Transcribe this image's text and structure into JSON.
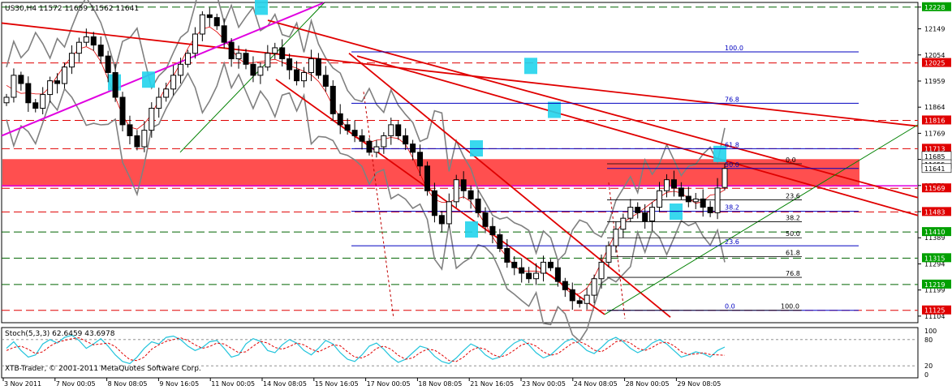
{
  "header": {
    "symbol_line": "US30,H4  11572 11659 11562 11641",
    "stoch_label": "Stoch(5,3,3) 62.6459 43.6978",
    "copyright": "XTB-Trader, © 2001-2011 MetaQuotes Software Corp."
  },
  "chart_data": [
    {
      "type": "candlestick",
      "symbol": "US30",
      "timeframe": "H4",
      "last_ohlc": {
        "open": 11572,
        "high": 11659,
        "low": 11562,
        "close": 11641
      },
      "ylim": [
        11080,
        12245
      ],
      "price_ticks": [
        12228,
        12149,
        12054,
        11959,
        11864,
        11769,
        11674,
        11579,
        11484,
        11389,
        11294,
        11199,
        11104
      ],
      "x_tick_labels": [
        "3 Nov 2011",
        "7 Nov 00:05",
        "8 Nov 08:05",
        "9 Nov 16:05",
        "11 Nov 00:05",
        "14 Nov 08:05",
        "15 Nov 16:05",
        "17 Nov 00:05",
        "18 Nov 08:05",
        "21 Nov 16:05",
        "23 Nov 00:05",
        "24 Nov 08:05",
        "28 Nov 00:05",
        "29 Nov 08:05"
      ],
      "close_series": [
        11900,
        11980,
        11950,
        11880,
        11860,
        11910,
        11960,
        11950,
        12010,
        12060,
        12100,
        12120,
        12090,
        12050,
        11990,
        11900,
        11800,
        11760,
        11720,
        11780,
        11860,
        11900,
        11930,
        11980,
        12020,
        12060,
        12130,
        12200,
        12190,
        12160,
        12100,
        12040,
        12060,
        12020,
        11980,
        12010,
        12060,
        12080,
        12040,
        12000,
        11960,
        11990,
        12040,
        11980,
        11940,
        11840,
        11800,
        11780,
        11760,
        11740,
        11700,
        11720,
        11760,
        11800,
        11760,
        11730,
        11700,
        11650,
        11560,
        11470,
        11440,
        11520,
        11600,
        11560,
        11530,
        11480,
        11430,
        11400,
        11350,
        11300,
        11280,
        11260,
        11240,
        11260,
        11300,
        11280,
        11230,
        11200,
        11160,
        11150,
        11180,
        11240,
        11300,
        11360,
        11420,
        11460,
        11500,
        11480,
        11450,
        11500,
        11560,
        11600,
        11570,
        11540,
        11520,
        11530,
        11500,
        11480,
        11570,
        11641
      ],
      "price_labels": [
        {
          "label": "12228",
          "value": 12228,
          "color": "#00a000"
        },
        {
          "label": "12025",
          "value": 12025,
          "color": "#e00000"
        },
        {
          "label": "11816",
          "value": 11816,
          "color": "#e00000"
        },
        {
          "label": "11713",
          "value": 11713,
          "color": "#e00000"
        },
        {
          "label": "11685",
          "value": 11685,
          "color": "#ffffff"
        },
        {
          "label": "11655",
          "value": 11655,
          "color": "#ffffff"
        },
        {
          "label": "11641",
          "value": 11641,
          "color": "#ffffff"
        },
        {
          "label": "11569",
          "value": 11569,
          "color": "#e00000"
        },
        {
          "label": "11483",
          "value": 11483,
          "color": "#e00000"
        },
        {
          "label": "11410",
          "value": 11410,
          "color": "#00a000"
        },
        {
          "label": "11315",
          "value": 11315,
          "color": "#00a000"
        },
        {
          "label": "11219",
          "value": 11219,
          "color": "#00a000"
        },
        {
          "label": "11125",
          "value": 11125,
          "color": "#e00000"
        }
      ],
      "fib_upper": [
        {
          "label": "100.0",
          "value": 12065
        },
        {
          "label": "76.8",
          "value": 11878
        },
        {
          "label": "61.8",
          "value": 11713
        },
        {
          "label": "50.0",
          "value": 11641
        },
        {
          "label": "38.2",
          "value": 11485
        },
        {
          "label": "23.6",
          "value": 11360
        },
        {
          "label": "0.0",
          "value": 11125
        }
      ],
      "fib_lower": [
        {
          "label": "0.0",
          "value": 11658
        },
        {
          "label": "23.6",
          "value": 11527
        },
        {
          "label": "38.2",
          "value": 11447
        },
        {
          "label": "50.0",
          "value": 11389
        },
        {
          "label": "61.8",
          "value": 11320
        },
        {
          "label": "76.8",
          "value": 11245
        },
        {
          "label": "100.0",
          "value": 11125
        }
      ],
      "resistance_zone": [
        11575,
        11675
      ],
      "colors": {
        "up": "#ffffff",
        "down": "#000000",
        "trend": "#e00000",
        "support": "#00a000",
        "bollinger": "#808080",
        "magenta": "#e000e0",
        "fib": "#0000c0",
        "zone": "#ff3030",
        "highlight": "#22d4ec"
      }
    },
    {
      "type": "line",
      "name": "Stoch(5,3,3)",
      "main_value": 62.6459,
      "signal_value": 43.6978,
      "ylim": [
        0,
        100
      ],
      "y_tick_labels": [
        "100",
        "80",
        "20",
        "0"
      ],
      "levels": [
        80,
        20
      ],
      "main": [
        60,
        75,
        55,
        40,
        45,
        70,
        80,
        72,
        85,
        90,
        78,
        60,
        70,
        82,
        65,
        45,
        30,
        25,
        40,
        60,
        75,
        70,
        85,
        88,
        80,
        65,
        55,
        62,
        75,
        78,
        60,
        40,
        45,
        70,
        82,
        76,
        55,
        50,
        68,
        80,
        72,
        55,
        45,
        60,
        78,
        70,
        50,
        35,
        30,
        45,
        65,
        72,
        58,
        40,
        28,
        35,
        50,
        65,
        60,
        42,
        30,
        25,
        38,
        55,
        70,
        62,
        45,
        35,
        40,
        58,
        72,
        80,
        68,
        50,
        38,
        45,
        60,
        75,
        82,
        70,
        55,
        48,
        62,
        78,
        85,
        75,
        60,
        50,
        58,
        72,
        80,
        70,
        55,
        40,
        45,
        52,
        48,
        40,
        55,
        63
      ],
      "signal": [
        55,
        62,
        65,
        58,
        48,
        52,
        65,
        74,
        78,
        82,
        84,
        76,
        68,
        70,
        72,
        64,
        48,
        34,
        32,
        40,
        58,
        68,
        76,
        80,
        84,
        78,
        68,
        60,
        64,
        72,
        70,
        60,
        50,
        52,
        65,
        76,
        72,
        62,
        58,
        64,
        72,
        68,
        58,
        52,
        60,
        68,
        66,
        52,
        40,
        38,
        46,
        60,
        65,
        58,
        44,
        35,
        38,
        50,
        58,
        56,
        45,
        32,
        30,
        40,
        55,
        62,
        58,
        46,
        40,
        45,
        56,
        68,
        72,
        65,
        52,
        44,
        48,
        60,
        72,
        75,
        68,
        56,
        52,
        62,
        75,
        78,
        72,
        60,
        55,
        62,
        72,
        74,
        66,
        52,
        46,
        47,
        50,
        46,
        45,
        44
      ],
      "colors": {
        "main": "#22c4dc",
        "signal": "#e00000"
      }
    }
  ]
}
